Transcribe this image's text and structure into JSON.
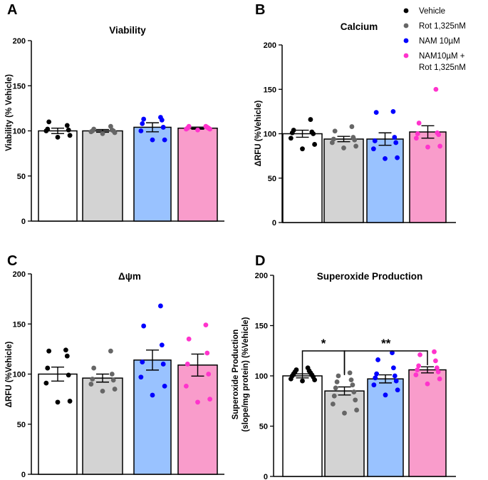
{
  "legend": [
    {
      "label": "Vehicle",
      "color": "#000000"
    },
    {
      "label": "Rot 1,325nM",
      "color": "#666666"
    },
    {
      "label": "NAM 10µM",
      "color": "#0000ff"
    },
    {
      "label": "NAM10µM +",
      "label2": "Rot 1,325nM",
      "color": "#ff33cc"
    }
  ],
  "bar_fills": [
    "#ffffff",
    "#d3d3d3",
    "#99c2ff",
    "#f99ccb"
  ],
  "chart_data": [
    {
      "type": "bar",
      "panel": "A",
      "title": "Viability",
      "ylabel": "Viability (% Vehicle)",
      "ylim": [
        0,
        200
      ],
      "yticks": [
        0,
        50,
        100,
        150,
        200
      ],
      "series": [
        {
          "name": "Vehicle",
          "mean": 100,
          "sem": 3,
          "points": [
            93,
            95,
            100,
            101,
            102,
            106,
            110
          ]
        },
        {
          "name": "Rot 1,325nM",
          "mean": 100,
          "sem": 1.5,
          "points": [
            97,
            98,
            99,
            100,
            100,
            101,
            102,
            105
          ]
        },
        {
          "name": "NAM 10µM",
          "mean": 104,
          "sem": 5,
          "points": [
            90,
            90,
            100,
            104,
            108,
            112,
            113,
            115
          ]
        },
        {
          "name": "NAM10µM + Rot 1,325nM",
          "mean": 103,
          "sem": 1.2,
          "points": [
            101,
            102,
            102,
            103,
            103,
            104,
            105,
            105
          ]
        }
      ]
    },
    {
      "type": "bar",
      "panel": "B",
      "title": "Calcium",
      "ylabel": "ΔRFU (%Vehicle)",
      "ylim": [
        0,
        200
      ],
      "yticks": [
        0,
        50,
        100,
        150,
        200
      ],
      "series": [
        {
          "name": "Vehicle",
          "mean": 100,
          "sem": 4,
          "points": [
            83,
            88,
            95,
            100,
            101,
            102,
            104,
            116
          ]
        },
        {
          "name": "Rot 1,325nM",
          "mean": 94,
          "sem": 3,
          "points": [
            84,
            86,
            90,
            93,
            94,
            96,
            103,
            108
          ]
        },
        {
          "name": "NAM 10µM",
          "mean": 94,
          "sem": 7,
          "points": [
            72,
            73,
            83,
            90,
            92,
            96,
            124,
            125
          ]
        },
        {
          "name": "NAM10µM + Rot 1,325nM",
          "mean": 102,
          "sem": 7,
          "points": [
            85,
            86,
            95,
            99,
            100,
            101,
            112,
            150
          ]
        }
      ]
    },
    {
      "type": "bar",
      "panel": "C",
      "title": "Δψm",
      "ylabel": "ΔRFU (%Vehicle)",
      "ylim": [
        0,
        200
      ],
      "yticks": [
        0,
        50,
        100,
        150,
        200
      ],
      "series": [
        {
          "name": "Vehicle",
          "mean": 100,
          "sem": 7,
          "points": [
            72,
            73,
            91,
            99,
            106,
            118,
            123,
            124
          ]
        },
        {
          "name": "Rot 1,325nM",
          "mean": 96,
          "sem": 4,
          "points": [
            83,
            85,
            90,
            94,
            95,
            100,
            106,
            123
          ]
        },
        {
          "name": "NAM 10µM",
          "mean": 114,
          "sem": 10,
          "points": [
            79,
            88,
            97,
            110,
            112,
            129,
            148,
            168
          ]
        },
        {
          "name": "NAM10µM + Rot 1,325nM",
          "mean": 109,
          "sem": 11,
          "points": [
            72,
            75,
            88,
            100,
            110,
            121,
            135,
            149
          ]
        }
      ]
    },
    {
      "type": "bar",
      "panel": "D",
      "title": "Superoxide Production",
      "ylabel": "Superoxide Production",
      "ylabel2": "(slope/mg protein) (%Vehicle)",
      "ylim": [
        0,
        200
      ],
      "yticks": [
        0,
        50,
        100,
        150,
        200
      ],
      "series": [
        {
          "name": "Vehicle",
          "mean": 100,
          "sem": 2,
          "points": [
            95,
            96,
            97,
            99,
            100,
            101,
            102,
            103,
            104,
            105,
            106,
            108
          ]
        },
        {
          "name": "Rot 1,325nM",
          "mean": 85,
          "sem": 4,
          "points": [
            63,
            66,
            72,
            76,
            80,
            84,
            88,
            91,
            94,
            96,
            100,
            103
          ]
        },
        {
          "name": "NAM 10µM",
          "mean": 97,
          "sem": 4,
          "points": [
            81,
            86,
            91,
            95,
            98,
            100,
            102,
            108,
            116,
            123
          ]
        },
        {
          "name": "NAM10µM + Rot 1,325nM",
          "mean": 106,
          "sem": 3,
          "points": [
            92,
            97,
            101,
            104,
            106,
            108,
            110,
            115,
            121,
            124
          ]
        }
      ],
      "significance": [
        {
          "from": 0,
          "to": 1,
          "label": "*"
        },
        {
          "from": 1,
          "to": 3,
          "label": "**"
        }
      ]
    }
  ]
}
